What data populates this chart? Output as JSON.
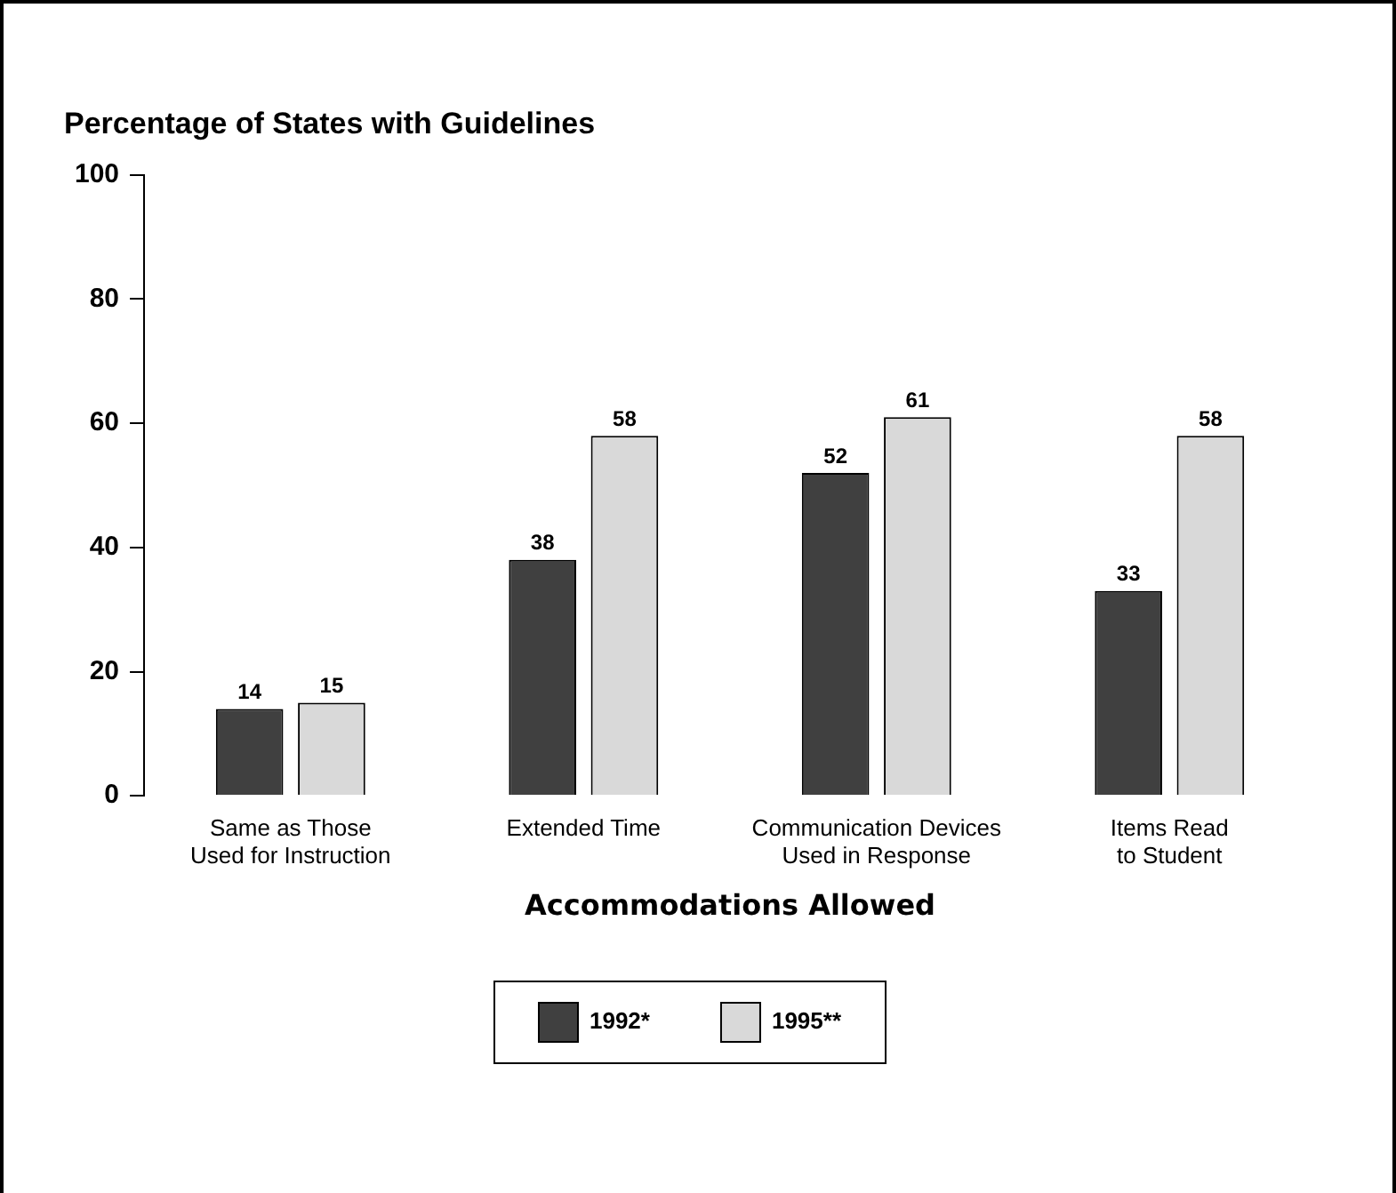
{
  "chart_data": {
    "type": "bar",
    "title": "Percentage of States with Guidelines",
    "xlabel": "Accommodations Allowed",
    "categories": [
      "Same as Those\nUsed for Instruction",
      "Extended Time",
      "Communication Devices\nUsed in Response",
      "Items Read\nto Student"
    ],
    "series": [
      {
        "name": "1992*",
        "color": "#404040",
        "values": [
          14,
          38,
          52,
          33
        ]
      },
      {
        "name": "1995**",
        "color": "#d9d9d9",
        "values": [
          15,
          58,
          61,
          58
        ]
      }
    ],
    "ylim": [
      0,
      100
    ],
    "yticks": [
      0,
      20,
      40,
      60,
      80,
      100
    ],
    "grid": false,
    "legend": "bottom",
    "data_labels": true
  }
}
